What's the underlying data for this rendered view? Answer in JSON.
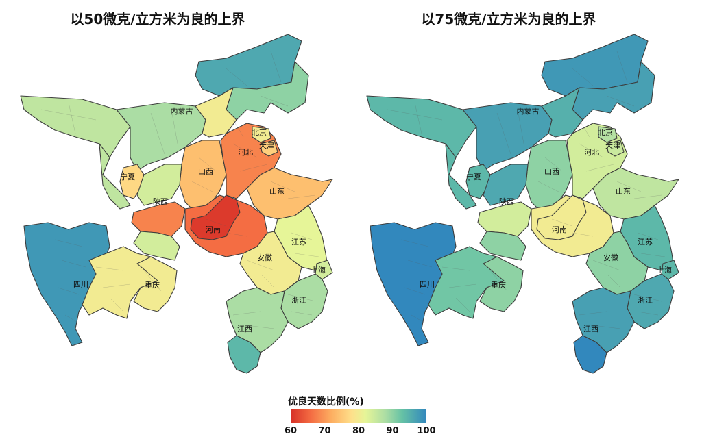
{
  "maps": [
    {
      "title": "以50微克/立方米为良的上界",
      "labels": {
        "nmg": "内蒙古",
        "bj": "北京",
        "tj": "天津",
        "hb": "河北",
        "sx": "山西",
        "sd": "山东",
        "nx": "宁夏",
        "snx": "陕西",
        "hn": "河南",
        "js": "江苏",
        "ah": "安徽",
        "sh": "上海",
        "sc": "四川",
        "cq": "重庆",
        "zj": "浙江",
        "jx": "江西"
      },
      "region_values": {
        "nmg_w": 86,
        "nmg_c": 88,
        "nmg_ne": 96,
        "nmg_e": 90,
        "nmg_s": 80,
        "bj": 80,
        "tj": 76,
        "hb": 68,
        "sx": 74,
        "sd": 74,
        "nx": 77,
        "snx_n": 84,
        "snx_c": 68,
        "snx_s": 84,
        "hn": 66,
        "hn_core": 61,
        "js": 82,
        "ah": 80,
        "sh": 84,
        "sc_w": 98,
        "sc_e": 80,
        "cq": 80,
        "zj": 88,
        "jx": 88,
        "jx_s": 94,
        "gs": 86
      }
    },
    {
      "title": "以75微克/立方米为良的上界",
      "labels": {
        "nmg": "内蒙古",
        "bj": "北京",
        "tj": "天津",
        "hb": "河北",
        "sx": "山西",
        "sd": "山东",
        "nx": "宁夏",
        "snx": "陕西",
        "hn": "河南",
        "js": "江苏",
        "ah": "安徽",
        "sh": "上海",
        "sc": "四川",
        "cq": "重庆",
        "zj": "浙江",
        "jx": "江西"
      },
      "region_values": {
        "nmg_w": 94,
        "nmg_c": 97,
        "nmg_ne": 98,
        "nmg_e": 97,
        "nmg_s": 95,
        "bj": 87,
        "tj": 85,
        "hb": 84,
        "sx": 90,
        "sd": 86,
        "nx": 94,
        "snx_n": 96,
        "snx_c": 84,
        "snx_s": 90,
        "hn": 80,
        "hn_core": 80,
        "js": 94,
        "ah": 90,
        "sh": 94,
        "sc_w": 100,
        "sc_e": 92,
        "cq": 90,
        "zj": 96,
        "jx": 97,
        "jx_s": 100,
        "gs": 94
      }
    }
  ],
  "legend": {
    "title": "优良天数比例(%)",
    "ticks": [
      "60",
      "70",
      "80",
      "90",
      "100"
    ],
    "min": 60,
    "max": 100,
    "colors": [
      "#d73027",
      "#f46d43",
      "#fdae61",
      "#fee08b",
      "#e6f598",
      "#abdda4",
      "#66c2a5",
      "#3288bd"
    ]
  }
}
